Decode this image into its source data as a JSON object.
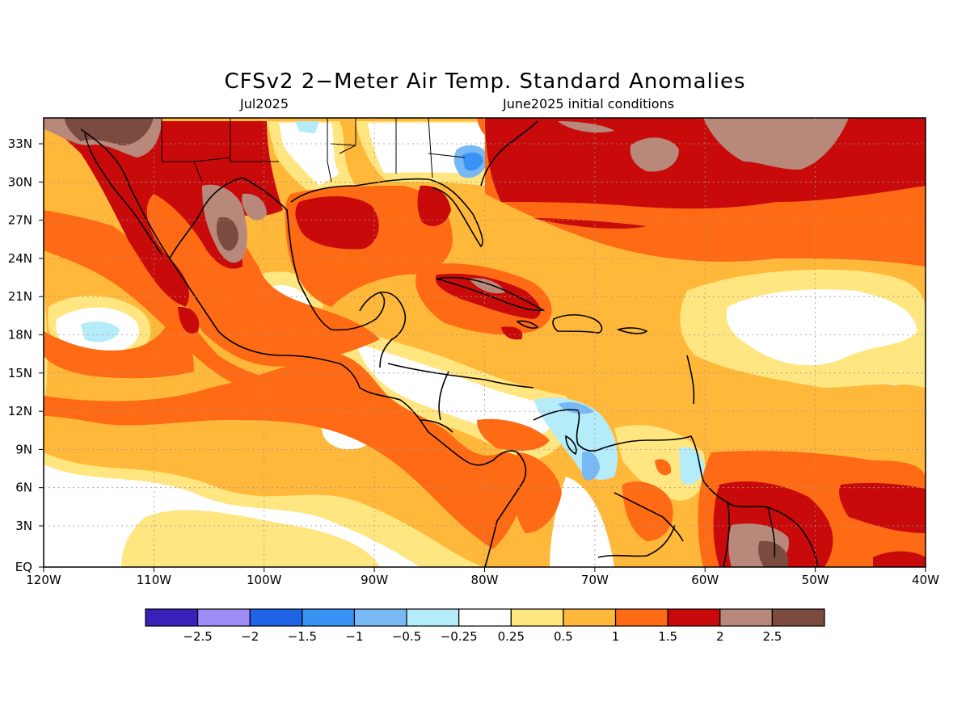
{
  "title": "CFSv2 2−Meter Air Temp. Standard Anomalies",
  "valid_month": "Jul2025",
  "init_label": "June2025 initial conditions",
  "lat_labels": [
    "33N",
    "30N",
    "27N",
    "24N",
    "21N",
    "18N",
    "15N",
    "12N",
    "9N",
    "6N",
    "3N",
    "EQ"
  ],
  "lon_labels": [
    "120W",
    "110W",
    "100W",
    "90W",
    "80W",
    "70W",
    "60W",
    "50W",
    "40W"
  ],
  "colorbar": {
    "colors": [
      "#3a1fb8",
      "#a08cf5",
      "#1f63e6",
      "#3a92f5",
      "#78b8f5",
      "#b4ecfa",
      "#ffffff",
      "#ffe680",
      "#ffb83a",
      "#ff6a14",
      "#c80a0a",
      "#b8897a",
      "#7a4b3e"
    ],
    "labels": [
      "−2.5",
      "−2",
      "−1.5",
      "−1",
      "−0.5",
      "−0.25",
      "0.25",
      "0.5",
      "1",
      "1.5",
      "2",
      "2.5"
    ]
  }
}
